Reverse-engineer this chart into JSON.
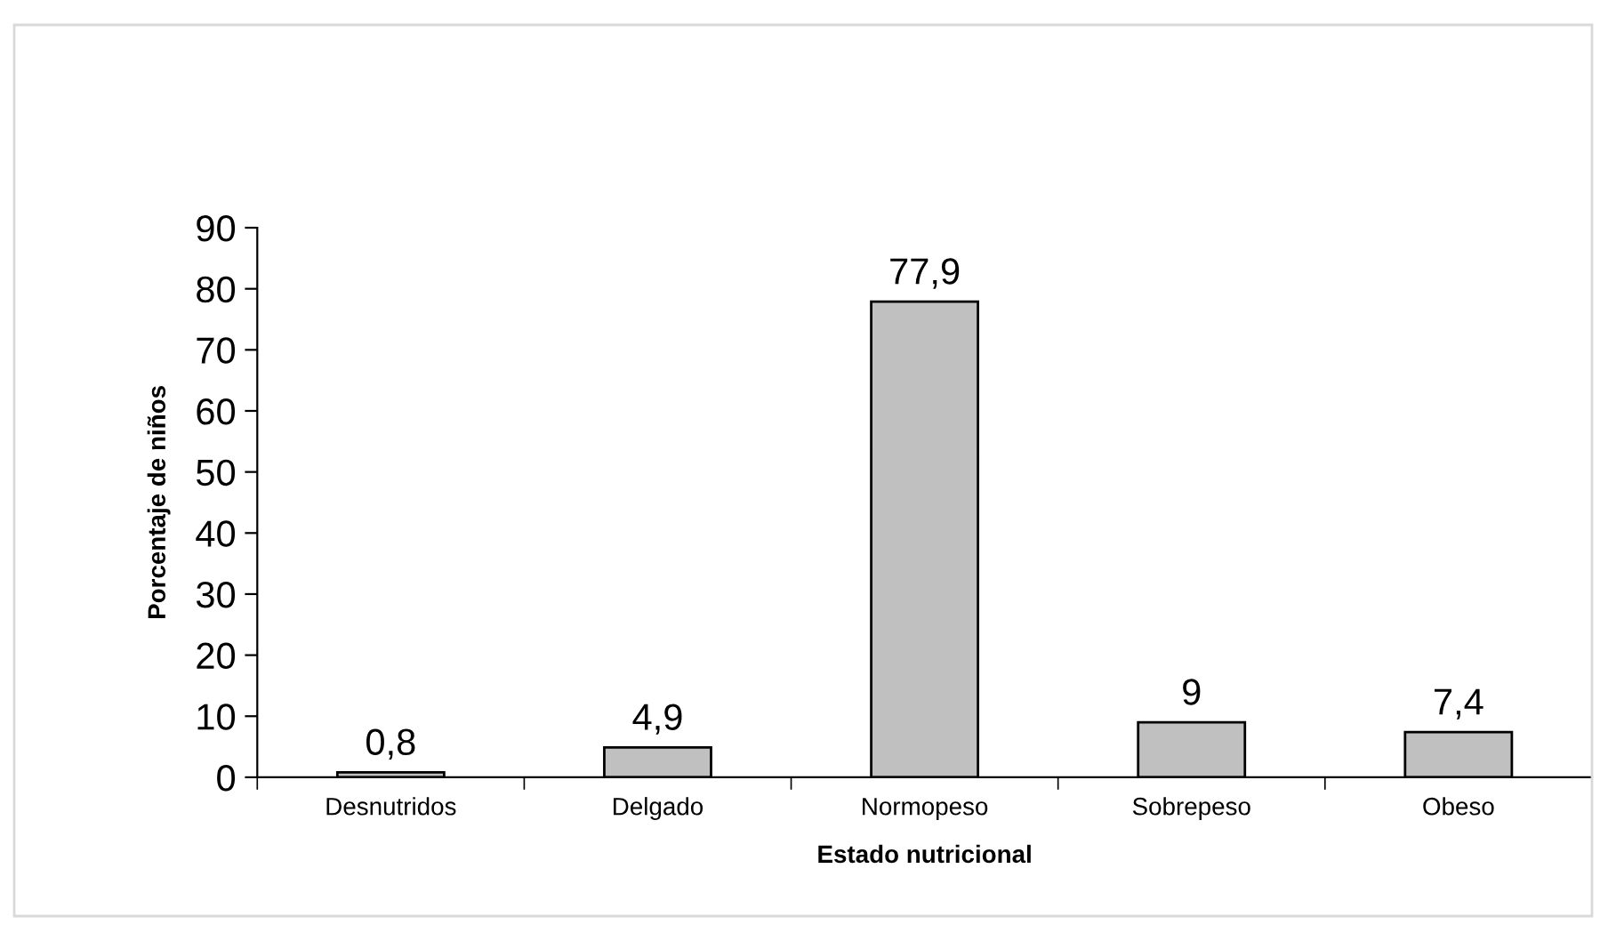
{
  "chart_data": {
    "type": "bar",
    "xlabel": "Estado nutricional",
    "ylabel": "Porcentaje de niños",
    "categories": [
      "Desnutridos",
      "Delgado",
      "Normopeso",
      "Sobrepeso",
      "Obeso"
    ],
    "values": [
      0.8,
      4.9,
      77.9,
      9,
      7.4
    ],
    "value_labels": [
      "0,8",
      "4,9",
      "77,9",
      "9",
      "7,4"
    ],
    "color": "#c0c0c0",
    "ylim": [
      0,
      90
    ],
    "yticks": [
      0,
      10,
      20,
      30,
      40,
      50,
      60,
      70,
      80,
      90
    ],
    "grid": false,
    "legend": false
  }
}
